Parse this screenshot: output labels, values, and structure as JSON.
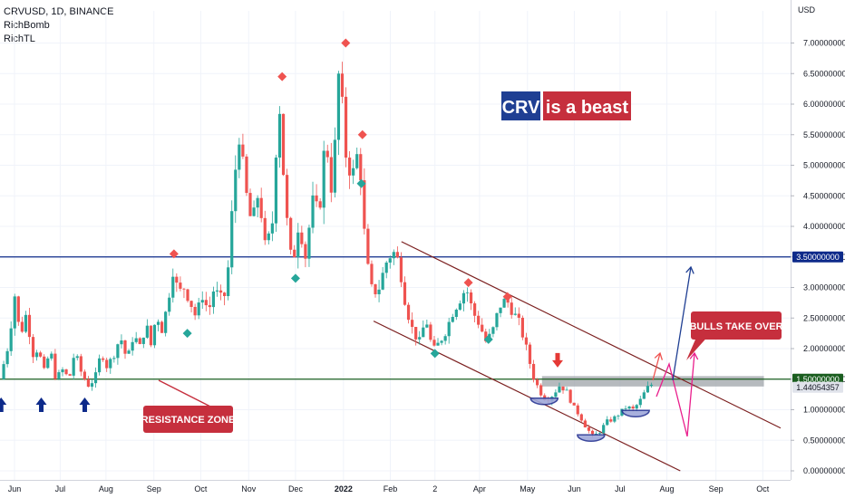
{
  "header": {
    "symbol": "CRVUSD, 1D, BINANCE",
    "indicators": [
      "RichBomb",
      "RichTL"
    ]
  },
  "colors": {
    "bull": "#26a69a",
    "bear": "#ef5350",
    "resistance_line": "#1b5e20",
    "upper_line": "#0d2a8a",
    "channel": "#7b1f1f",
    "zone": "#9ea3a8",
    "box_red": "#c62f3d",
    "box_blue": "#1f3f93",
    "pink": "#e91e8c",
    "blue_arrow": "#1f3f93",
    "support_arrow": "#0d2a8a"
  },
  "chart_data": {
    "type": "candlestick",
    "title": "CRVUSD, 1D, BINANCE",
    "y_axis_unit": "USD",
    "ylim": [
      0,
      7.8
    ],
    "y_ticks": [
      "0.00000000",
      "0.50000000",
      "1.00000000",
      "1.50000000",
      "2.00000000",
      "2.50000000",
      "3.00000000",
      "3.50000000",
      "4.00000000",
      "4.50000000",
      "5.00000000",
      "5.50000000",
      "6.00000000",
      "6.50000000",
      "7.00000000"
    ],
    "x_ticks": [
      "Jun",
      "Jul",
      "Aug",
      "Sep",
      "Oct",
      "Nov",
      "Dec",
      "2022",
      "Feb",
      "2",
      "Apr",
      "May",
      "Jun",
      "Jul",
      "Aug",
      "Sep",
      "Oct"
    ],
    "price_path": [
      {
        "t": 0,
        "p": 1.5
      },
      {
        "t": 0.8,
        "p": 2.1
      },
      {
        "t": 1.3,
        "p": 2.9
      },
      {
        "t": 1.8,
        "p": 2.2
      },
      {
        "t": 2.4,
        "p": 2.6
      },
      {
        "t": 2.9,
        "p": 1.9
      },
      {
        "t": 3.4,
        "p": 2.0
      },
      {
        "t": 4.0,
        "p": 1.6
      },
      {
        "t": 4.5,
        "p": 2.0
      },
      {
        "t": 5.0,
        "p": 1.5
      },
      {
        "t": 5.6,
        "p": 1.65
      },
      {
        "t": 6.2,
        "p": 1.5
      },
      {
        "t": 6.7,
        "p": 1.95
      },
      {
        "t": 7.3,
        "p": 1.6
      },
      {
        "t": 7.9,
        "p": 1.4
      },
      {
        "t": 8.5,
        "p": 1.5
      },
      {
        "t": 9.1,
        "p": 1.95
      },
      {
        "t": 9.6,
        "p": 1.7
      },
      {
        "t": 10.2,
        "p": 1.9
      },
      {
        "t": 10.8,
        "p": 2.2
      },
      {
        "t": 11.4,
        "p": 1.8
      },
      {
        "t": 12.0,
        "p": 2.25
      },
      {
        "t": 12.5,
        "p": 2.0
      },
      {
        "t": 13.1,
        "p": 2.4
      },
      {
        "t": 13.6,
        "p": 2.0
      },
      {
        "t": 14.0,
        "p": 2.6
      },
      {
        "t": 14.5,
        "p": 2.3
      },
      {
        "t": 15.0,
        "p": 2.7
      },
      {
        "t": 15.5,
        "p": 3.3
      },
      {
        "t": 16.0,
        "p": 2.9
      },
      {
        "t": 16.5,
        "p": 3.0
      },
      {
        "t": 17.0,
        "p": 2.8
      },
      {
        "t": 17.6,
        "p": 2.5
      },
      {
        "t": 18.1,
        "p": 2.9
      },
      {
        "t": 18.7,
        "p": 2.6
      },
      {
        "t": 19.2,
        "p": 3.0
      },
      {
        "t": 19.7,
        "p": 2.8
      },
      {
        "t": 20.3,
        "p": 2.9
      },
      {
        "t": 20.8,
        "p": 4.2
      },
      {
        "t": 21.4,
        "p": 5.6
      },
      {
        "t": 22.0,
        "p": 4.6
      },
      {
        "t": 22.6,
        "p": 4.0
      },
      {
        "t": 23.2,
        "p": 4.6
      },
      {
        "t": 23.8,
        "p": 3.6
      },
      {
        "t": 24.4,
        "p": 4.0
      },
      {
        "t": 25.0,
        "p": 6.2
      },
      {
        "t": 25.6,
        "p": 4.3
      },
      {
        "t": 26.2,
        "p": 3.3
      },
      {
        "t": 26.8,
        "p": 4.1
      },
      {
        "t": 27.4,
        "p": 3.5
      },
      {
        "t": 28.0,
        "p": 4.4
      },
      {
        "t": 28.6,
        "p": 4.2
      },
      {
        "t": 29.2,
        "p": 5.5
      },
      {
        "t": 29.8,
        "p": 4.5
      },
      {
        "t": 30.4,
        "p": 6.6
      },
      {
        "t": 31.0,
        "p": 5.2
      },
      {
        "t": 31.6,
        "p": 4.8
      },
      {
        "t": 32.2,
        "p": 5.3
      },
      {
        "t": 32.8,
        "p": 3.5
      },
      {
        "t": 33.4,
        "p": 2.9
      },
      {
        "t": 34.0,
        "p": 3.0
      },
      {
        "t": 34.6,
        "p": 3.4
      },
      {
        "t": 35.2,
        "p": 3.6
      },
      {
        "t": 35.8,
        "p": 3.4
      },
      {
        "t": 36.4,
        "p": 2.7
      },
      {
        "t": 37.0,
        "p": 2.3
      },
      {
        "t": 37.6,
        "p": 2.1
      },
      {
        "t": 38.2,
        "p": 2.5
      },
      {
        "t": 38.8,
        "p": 1.95
      },
      {
        "t": 39.4,
        "p": 2.1
      },
      {
        "t": 40.0,
        "p": 2.3
      },
      {
        "t": 40.6,
        "p": 2.6
      },
      {
        "t": 41.2,
        "p": 2.8
      },
      {
        "t": 41.8,
        "p": 3.0
      },
      {
        "t": 42.4,
        "p": 2.6
      },
      {
        "t": 43.0,
        "p": 2.4
      },
      {
        "t": 43.6,
        "p": 2.1
      },
      {
        "t": 44.2,
        "p": 2.3
      },
      {
        "t": 44.8,
        "p": 2.7
      },
      {
        "t": 45.4,
        "p": 2.8
      },
      {
        "t": 46.0,
        "p": 2.6
      },
      {
        "t": 46.6,
        "p": 2.4
      },
      {
        "t": 47.2,
        "p": 2.0
      },
      {
        "t": 47.8,
        "p": 1.55
      },
      {
        "t": 48.4,
        "p": 1.3
      },
      {
        "t": 49.0,
        "p": 1.15
      },
      {
        "t": 49.6,
        "p": 1.25
      },
      {
        "t": 50.2,
        "p": 1.4
      },
      {
        "t": 50.8,
        "p": 1.3
      },
      {
        "t": 51.4,
        "p": 1.05
      },
      {
        "t": 52.0,
        "p": 0.9
      },
      {
        "t": 52.6,
        "p": 0.7
      },
      {
        "t": 53.2,
        "p": 0.55
      },
      {
        "t": 53.8,
        "p": 0.65
      },
      {
        "t": 54.4,
        "p": 0.8
      },
      {
        "t": 55.0,
        "p": 0.85
      },
      {
        "t": 55.6,
        "p": 0.95
      },
      {
        "t": 56.2,
        "p": 1.05
      },
      {
        "t": 56.8,
        "p": 1.0
      },
      {
        "t": 57.4,
        "p": 1.15
      },
      {
        "t": 58.0,
        "p": 1.35
      },
      {
        "t": 58.6,
        "p": 1.44
      }
    ],
    "levels": [
      {
        "price": 3.5,
        "label": "3.50000000",
        "role": "upper"
      },
      {
        "price": 1.5,
        "label": "1.50000000",
        "role": "resistance"
      },
      {
        "price": 1.44054357,
        "label": "1.44054357",
        "role": "last"
      }
    ],
    "resistance_zone": {
      "from": 1.38,
      "to": 1.55
    },
    "channel": {
      "upper": [
        {
          "t": 36.0,
          "p": 3.75
        },
        {
          "t": 70.0,
          "p": 0.7
        }
      ],
      "lower": [
        {
          "t": 33.5,
          "p": 2.45
        },
        {
          "t": 61.0,
          "p": 0.0
        }
      ]
    },
    "markers_sell": [
      {
        "t": 15.6,
        "p": 3.55
      },
      {
        "t": 25.3,
        "p": 6.45
      },
      {
        "t": 31.0,
        "p": 7.0
      },
      {
        "t": 32.5,
        "p": 5.5
      },
      {
        "t": 42.0,
        "p": 3.08
      },
      {
        "t": 45.5,
        "p": 2.85
      }
    ],
    "markers_buy": [
      {
        "t": 16.8,
        "p": 2.25
      },
      {
        "t": 26.5,
        "p": 3.15
      },
      {
        "t": 32.4,
        "p": 4.7
      },
      {
        "t": 39.0,
        "p": 1.92
      },
      {
        "t": 43.8,
        "p": 2.15
      }
    ],
    "arrows_support": [
      {
        "t": 0.1,
        "p": 1.2
      },
      {
        "t": 3.7,
        "p": 1.2
      },
      {
        "t": 7.6,
        "p": 1.2
      }
    ],
    "red_down_arrow": {
      "t": 50.0,
      "p": 1.75
    },
    "bottoms": [
      {
        "t": 48.8,
        "p": 1.1
      },
      {
        "t": 53.0,
        "p": 0.5
      },
      {
        "t": 57.0,
        "p": 0.9
      }
    ],
    "annotations": {
      "crv": "CRV",
      "beast": "is a beast",
      "resistance": "RESISTANCE ZONE",
      "bulls": "BULLS TAKE OVER"
    }
  }
}
